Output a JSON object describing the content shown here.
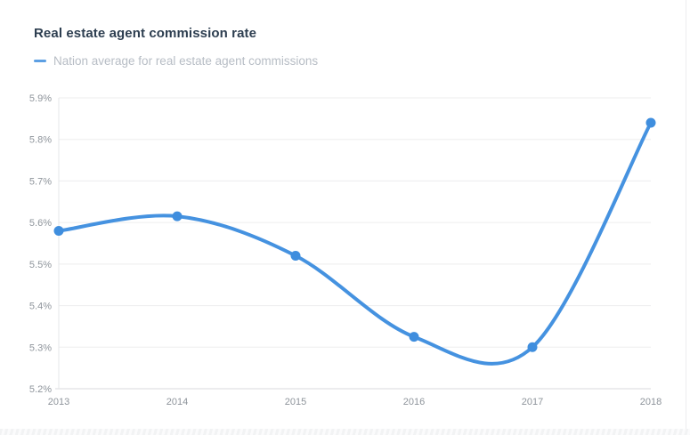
{
  "page": {
    "title": "Real estate agent commission rate"
  },
  "legend": {
    "label": "Nation average for real estate agent commissions"
  },
  "chart_data": {
    "type": "line",
    "title": "Real estate agent commission rate",
    "categories": [
      "2013",
      "2014",
      "2015",
      "2016",
      "2017",
      "2018"
    ],
    "series": [
      {
        "name": "Nation average for real estate agent commissions",
        "values": [
          5.58,
          5.615,
          5.52,
          5.325,
          5.3,
          5.84
        ]
      }
    ],
    "xlabel": "",
    "ylabel": "",
    "ylim": [
      5.2,
      5.9
    ],
    "y_tick_step": 0.1,
    "y_tick_labels": [
      "5.2%",
      "5.3%",
      "5.4%",
      "5.5%",
      "5.6%",
      "5.7%",
      "5.8%",
      "5.9%"
    ],
    "grid": "horizontal",
    "smooth": true,
    "legend_position": "top-left",
    "line_color": "#4592e0",
    "point_color": "#3f8ede",
    "legend_marker_color": "#5c9fe3",
    "grid_color": "#ededee",
    "axis_line_color": "#d8dadc",
    "left_edge_line_color": "#e5e7e9",
    "tick_label_color": "#8e949b",
    "title_color": "#2d3e50",
    "legend_text_color": "#b7bdc5"
  }
}
